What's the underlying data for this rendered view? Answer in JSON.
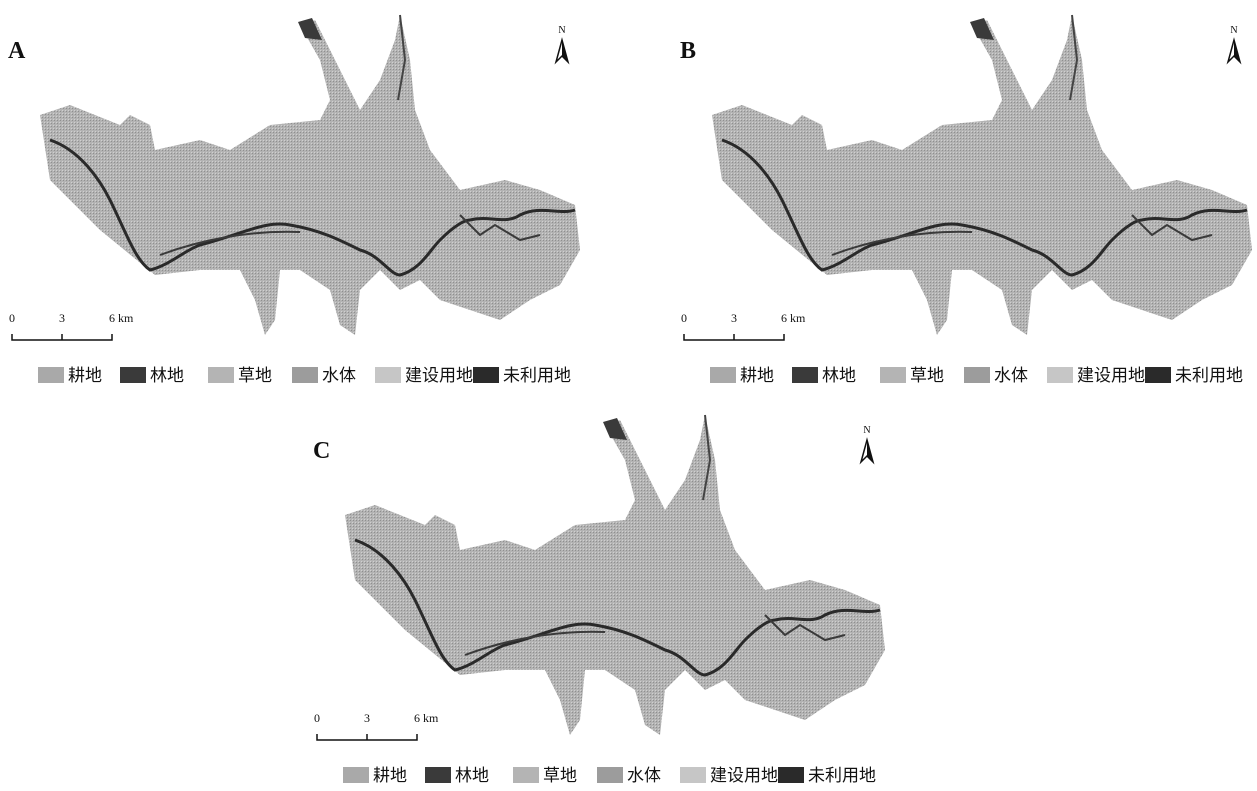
{
  "panels": [
    {
      "label": "A",
      "north": "N",
      "scale": [
        "0",
        "3",
        "6 km"
      ],
      "legend": [
        {
          "name": "耕地",
          "color": "#a9a9a9"
        },
        {
          "name": "林地",
          "color": "#3a3a3a"
        },
        {
          "name": "草地",
          "color": "#b4b4b4"
        },
        {
          "name": "水体",
          "color": "#9c9c9c"
        },
        {
          "name": "建设用地",
          "color": "#c6c6c6"
        },
        {
          "name": "未利用地",
          "color": "#2a2a2a"
        }
      ]
    },
    {
      "label": "B",
      "north": "N",
      "scale": [
        "0",
        "3",
        "6 km"
      ],
      "legend": [
        {
          "name": "耕地",
          "color": "#a9a9a9"
        },
        {
          "name": "林地",
          "color": "#3a3a3a"
        },
        {
          "name": "草地",
          "color": "#b4b4b4"
        },
        {
          "name": "水体",
          "color": "#9c9c9c"
        },
        {
          "name": "建设用地",
          "color": "#c6c6c6"
        },
        {
          "name": "未利用地",
          "color": "#2a2a2a"
        }
      ]
    },
    {
      "label": "C",
      "north": "N",
      "scale": [
        "0",
        "3",
        "6 km"
      ],
      "legend": [
        {
          "name": "耕地",
          "color": "#a9a9a9"
        },
        {
          "name": "林地",
          "color": "#3a3a3a"
        },
        {
          "name": "草地",
          "color": "#b4b4b4"
        },
        {
          "name": "水体",
          "color": "#9c9c9c"
        },
        {
          "name": "建设用地",
          "color": "#c6c6c6"
        },
        {
          "name": "未利用地",
          "color": "#2a2a2a"
        }
      ]
    }
  ]
}
